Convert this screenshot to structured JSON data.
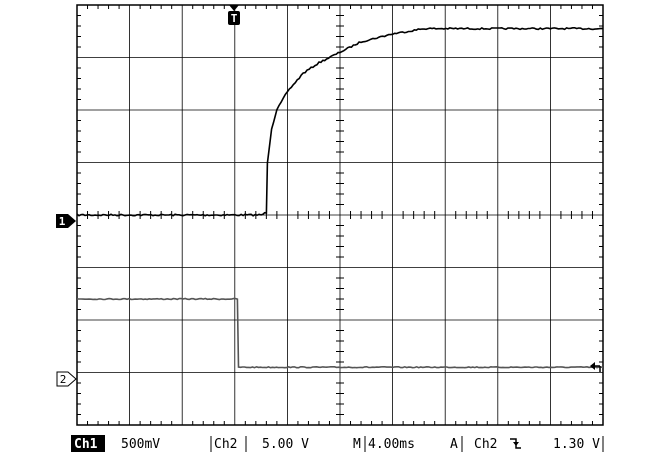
{
  "trigger_marker": {
    "label": "T"
  },
  "channel_markers": [
    {
      "label": "1",
      "style": "filled"
    },
    {
      "label": "2",
      "style": "outline"
    }
  ],
  "readout": {
    "ch1_label": "Ch1",
    "ch1_scale": "500mV",
    "ch2_label": "Ch2",
    "ch2_scale": "5.00 V",
    "time_prefix": "M",
    "time_scale": "4.00ms",
    "acq_label": "A",
    "trig_source": "Ch2",
    "trig_slope_symbol": "↓",
    "trig_level": "1.30 V"
  },
  "colors": {
    "ch1": "#000000",
    "ch2": "#555555",
    "background": "#ffffff"
  },
  "chart_data": {
    "type": "line",
    "title": "",
    "xlabel": "",
    "ylabel": "",
    "x_divisions": 10,
    "y_divisions": 8,
    "x_unit": "div",
    "y_unit": "div",
    "xlim": [
      0,
      10
    ],
    "ylim": [
      -4,
      4
    ],
    "grid": true,
    "series": [
      {
        "name": "",
        "channel": 1,
        "x": [
          0,
          3.5,
          3.6,
          3.62,
          3.7,
          3.8,
          4.0,
          4.3,
          4.6,
          5.0,
          5.4,
          6.0,
          6.6,
          7.2,
          8.0,
          9.0,
          10.0
        ],
        "y": [
          0,
          0,
          0.05,
          1.0,
          1.65,
          2.0,
          2.35,
          2.7,
          2.9,
          3.1,
          3.3,
          3.45,
          3.55,
          3.55,
          3.55,
          3.55,
          3.55
        ]
      },
      {
        "name": "",
        "channel": 2,
        "x": [
          0,
          3.05,
          3.07,
          10.0
        ],
        "y": [
          -1.6,
          -1.6,
          -2.9,
          -2.9
        ]
      }
    ]
  }
}
